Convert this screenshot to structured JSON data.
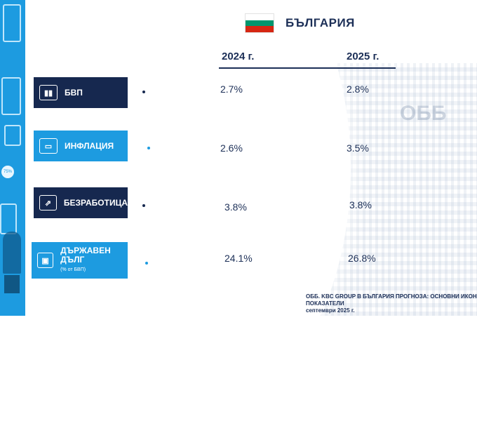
{
  "country": {
    "name": "БЪЛГАРИЯ",
    "flag_colors": [
      "#ffffff",
      "#00966e",
      "#d62612"
    ]
  },
  "columns": [
    "2024 г.",
    "2025 г."
  ],
  "indicators": [
    {
      "label": "БВП",
      "icon": "bar-chart-icon",
      "style": "dark",
      "v2024": "2.7%",
      "v2025": "2.8%"
    },
    {
      "label": "ИНФЛАЦИЯ",
      "icon": "wallet-icon",
      "style": "light",
      "v2024": "2.6%",
      "v2025": "3.5%"
    },
    {
      "label": "БЕЗРАБОТИЦА",
      "icon": "people-icon",
      "style": "dark",
      "v2024": "3.8%",
      "v2025": "3.8%"
    },
    {
      "label": "ДЪРЖАВЕН ДЪЛГ",
      "sublabel": "(% от БВП)",
      "icon": "briefcase-icon",
      "style": "light",
      "v2024": "24.1%",
      "v2025": "26.8%"
    }
  ],
  "left_strip": {
    "percent_badge": "75%"
  },
  "footer": {
    "line1": "ОББ. KBC GROUP В БЪЛГАРИЯ ПРОГНОЗА: ОСНОВНИ ИКОНО",
    "line2": "ПОКАЗАТЕЛИ",
    "line3": "септември 2025 г."
  },
  "colors": {
    "navy": "#16284f",
    "blue": "#1d9be0"
  }
}
